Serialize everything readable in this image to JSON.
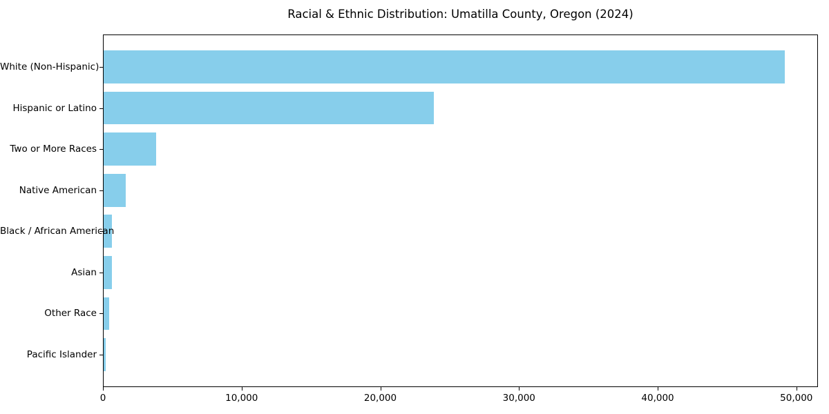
{
  "chart_data": {
    "type": "bar",
    "orientation": "horizontal",
    "title": "Racial & Ethnic Distribution: Umatilla County, Oregon (2024)",
    "categories": [
      "White (Non-Hispanic)",
      "Hispanic or Latino",
      "Two or More Races",
      "Native American",
      "Black / African American",
      "Asian",
      "Other Race",
      "Pacific Islander"
    ],
    "values": [
      49100,
      23800,
      3800,
      1600,
      620,
      600,
      420,
      160
    ],
    "xlabel": "",
    "ylabel": "",
    "xlim": [
      0,
      51555
    ],
    "x_ticks": [
      0,
      10000,
      20000,
      30000,
      40000,
      50000
    ],
    "x_tick_labels": [
      "0",
      "10,000",
      "20,000",
      "30,000",
      "40,000",
      "50,000"
    ],
    "bar_color": "#87CEEB",
    "axis_color": "#000000",
    "text_color": "#000000",
    "background_color": "#ffffff",
    "grid": false,
    "legend_position": "none"
  }
}
